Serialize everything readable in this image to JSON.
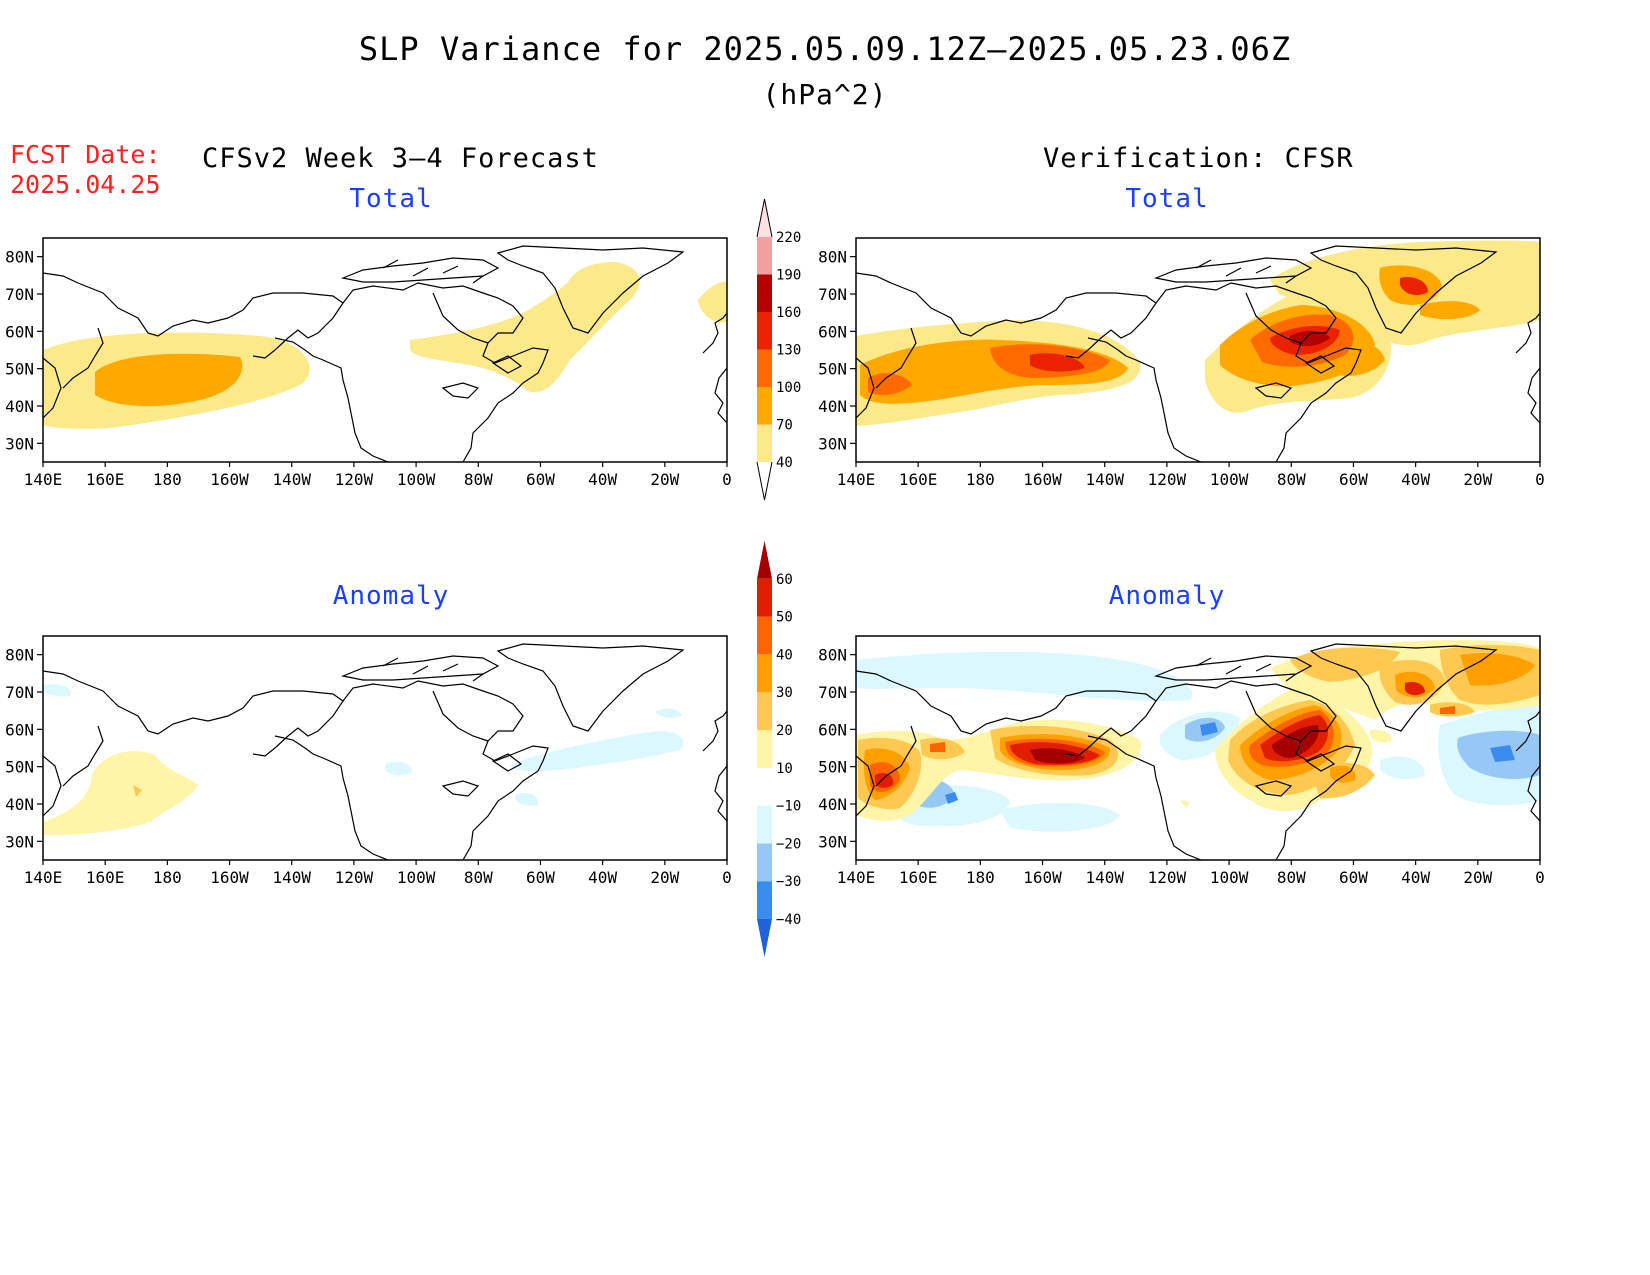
{
  "title": "SLP Variance for 2025.05.09.12Z—2025.05.23.06Z",
  "units": "(hPa^2)",
  "fcst_label": "FCST Date:",
  "fcst_date": "2025.04.25",
  "left_header": "CFSv2 Week 3—4 Forecast",
  "right_header": "Verification: CFSR",
  "panel_titles": {
    "total": "Total",
    "anomaly": "Anomaly"
  },
  "lat_labels": [
    "80N",
    "70N",
    "60N",
    "50N",
    "40N",
    "30N"
  ],
  "lon_labels": [
    "140E",
    "160E",
    "180",
    "160W",
    "140W",
    "120W",
    "100W",
    "80W",
    "60W",
    "40W",
    "20W",
    "0"
  ],
  "total_colorbar": {
    "levels": [
      "40",
      "70",
      "100",
      "130",
      "160",
      "190",
      "220"
    ],
    "colors": [
      "#fbe98a",
      "#ffa800",
      "#ff6a00",
      "#ea2200",
      "#b40000",
      "#f0a0a0",
      "#fde0e0"
    ]
  },
  "anomaly_colorbar": {
    "levels": [
      "−40",
      "−30",
      "−20",
      "−10",
      "10",
      "20",
      "30",
      "40",
      "50",
      "60"
    ],
    "colors": [
      "#1e64d8",
      "#3c8cf0",
      "#96c8f5",
      "#dcf8ff",
      "#ffffff",
      "#fff5a8",
      "#ffc850",
      "#ffa000",
      "#ff6400",
      "#e11e00",
      "#a50000"
    ]
  },
  "colors": {
    "subtitle": "#1a40ff",
    "fcst": "#ff2020"
  },
  "chart_data": [
    {
      "type": "heatmap",
      "panel": "CFSv2 Week 3—4 Forecast — Total",
      "units": "hPa^2",
      "xlim": [
        "140E",
        "0"
      ],
      "ylim": [
        "25N",
        "85N"
      ],
      "features": [
        {
          "region": "North Pacific",
          "range": "70–100"
        },
        {
          "region": "North Pacific / Bering",
          "range": "40–70"
        },
        {
          "region": "Hudson Bay to Labrador Sea",
          "range": "40–70"
        },
        {
          "region": "East Greenland / Denmark Strait",
          "range": "40–70"
        }
      ]
    },
    {
      "type": "heatmap",
      "panel": "Verification: CFSR — Total",
      "units": "hPa^2",
      "xlim": [
        "140E",
        "0"
      ],
      "ylim": [
        "25N",
        "85N"
      ],
      "features": [
        {
          "region": "Gulf of Alaska",
          "range": "130–160"
        },
        {
          "region": "North Pacific",
          "range": "70–130"
        },
        {
          "region": "Hudson Bay / Labrador",
          "range": "160–190"
        },
        {
          "region": "Greenland Sea",
          "range": "100–160"
        },
        {
          "region": "North Atlantic",
          "range": "40–100"
        }
      ]
    },
    {
      "type": "heatmap",
      "panel": "CFSv2 Week 3—4 Forecast — Anomaly",
      "units": "hPa^2",
      "xlim": [
        "140E",
        "0"
      ],
      "ylim": [
        "25N",
        "85N"
      ],
      "features": [
        {
          "region": "West-central North Pacific",
          "range": "10–20"
        },
        {
          "region": "Eastern US / Atlantic",
          "range": "−10 to 0"
        }
      ]
    },
    {
      "type": "heatmap",
      "panel": "Verification: CFSR — Anomaly",
      "units": "hPa^2",
      "xlim": [
        "140E",
        "0"
      ],
      "ylim": [
        "25N",
        "85N"
      ],
      "features": [
        {
          "region": "Gulf of Alaska",
          "range": "50–60"
        },
        {
          "region": "Hudson Bay / Labrador",
          "range": ">60"
        },
        {
          "region": "Near 40W 70N",
          "range": "50–60"
        },
        {
          "region": "NW Pacific",
          "range": "40–60"
        },
        {
          "region": "Central North Pacific",
          "range": "−30 to −20"
        },
        {
          "region": "Northeast Atlantic",
          "range": "−30 to −20"
        },
        {
          "region": "Pacific Northwest coast",
          "range": "−30 to −20"
        }
      ]
    }
  ]
}
